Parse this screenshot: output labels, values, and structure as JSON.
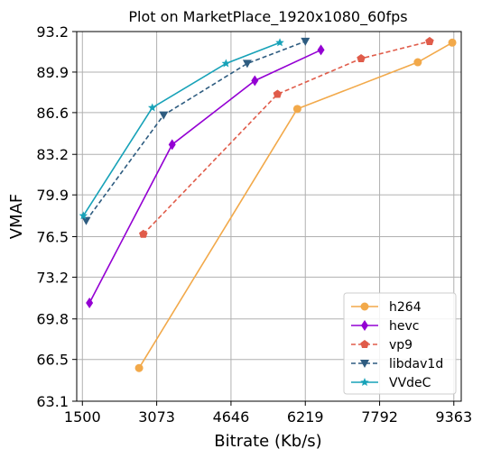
{
  "chart_data": {
    "type": "line",
    "title": "Plot on MarketPlace_1920x1080_60fps",
    "xlabel": "Bitrate (Kb/s)",
    "ylabel": "VMAF",
    "xlim": [
      1380,
      9520
    ],
    "ylim": [
      63.1,
      93.2
    ],
    "x_ticks": [
      1500,
      3073,
      4646,
      6219,
      7792,
      9363
    ],
    "y_ticks": [
      63.1,
      66.5,
      69.8,
      73.2,
      76.5,
      79.9,
      83.2,
      86.6,
      89.9,
      93.2
    ],
    "grid": true,
    "legend_position": "lower-right",
    "series": [
      {
        "name": "h264",
        "color": "#f2a94a",
        "marker": "circle",
        "dash": "solid",
        "points": [
          [
            2700,
            65.8
          ],
          [
            6050,
            86.9
          ],
          [
            8600,
            90.7
          ],
          [
            9330,
            92.3
          ]
        ]
      },
      {
        "name": "hevc",
        "color": "#9400d3",
        "marker": "diamond",
        "dash": "solid",
        "points": [
          [
            1650,
            71.1
          ],
          [
            3400,
            84.0
          ],
          [
            5150,
            89.2
          ],
          [
            6550,
            91.7
          ]
        ]
      },
      {
        "name": "vp9",
        "color": "#e05c4a",
        "marker": "pentagon",
        "dash": "dashed",
        "points": [
          [
            2790,
            76.7
          ],
          [
            5630,
            88.1
          ],
          [
            7400,
            91.0
          ],
          [
            8850,
            92.4
          ]
        ]
      },
      {
        "name": "libdav1d",
        "color": "#2e5c80",
        "marker": "triangle-down",
        "dash": "dashed",
        "points": [
          [
            1580,
            77.8
          ],
          [
            3220,
            86.4
          ],
          [
            4990,
            90.6
          ],
          [
            6220,
            92.4
          ]
        ]
      },
      {
        "name": "VVdeC",
        "color": "#17a2b8",
        "marker": "star",
        "dash": "solid",
        "points": [
          [
            1520,
            78.2
          ],
          [
            2980,
            87.0
          ],
          [
            4540,
            90.6
          ],
          [
            5680,
            92.3
          ]
        ]
      }
    ]
  }
}
